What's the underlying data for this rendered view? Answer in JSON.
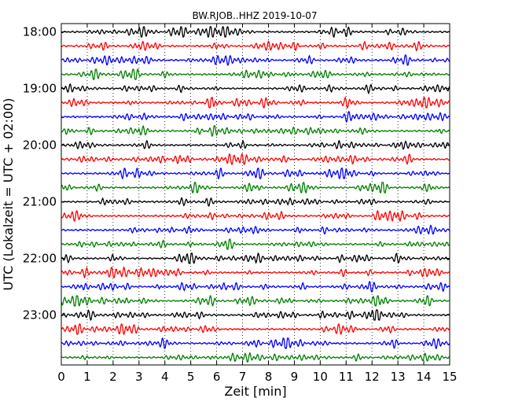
{
  "chart_data": {
    "type": "line",
    "title": "BW.RJOB..HHZ 2019-10-07",
    "xlabel": "Zeit  [min]",
    "ylabel": "UTC (Lokalzeit = UTC + 02:00)",
    "xlim": [
      0,
      15
    ],
    "x_ticks": [
      "0",
      "1",
      "2",
      "3",
      "4",
      "5",
      "6",
      "7",
      "8",
      "9",
      "10",
      "11",
      "12",
      "13",
      "14",
      "15"
    ],
    "y_ticks": [
      "18:00",
      "19:00",
      "20:00",
      "21:00",
      "22:00",
      "23:00"
    ],
    "grid": "vertical dotted",
    "trace_interval_min": 15,
    "trace_colors": [
      "#000000",
      "#ff0000",
      "#0000ff",
      "#008000"
    ],
    "traces": [
      {
        "start": "18:00",
        "color": "#000000"
      },
      {
        "start": "18:15",
        "color": "#ff0000"
      },
      {
        "start": "18:30",
        "color": "#0000ff"
      },
      {
        "start": "18:45",
        "color": "#008000"
      },
      {
        "start": "19:00",
        "color": "#000000"
      },
      {
        "start": "19:15",
        "color": "#ff0000"
      },
      {
        "start": "19:30",
        "color": "#0000ff"
      },
      {
        "start": "19:45",
        "color": "#008000"
      },
      {
        "start": "20:00",
        "color": "#000000"
      },
      {
        "start": "20:15",
        "color": "#ff0000"
      },
      {
        "start": "20:30",
        "color": "#0000ff"
      },
      {
        "start": "20:45",
        "color": "#008000"
      },
      {
        "start": "21:00",
        "color": "#000000"
      },
      {
        "start": "21:15",
        "color": "#ff0000"
      },
      {
        "start": "21:30",
        "color": "#0000ff"
      },
      {
        "start": "21:45",
        "color": "#008000"
      },
      {
        "start": "22:00",
        "color": "#000000"
      },
      {
        "start": "22:15",
        "color": "#ff0000"
      },
      {
        "start": "22:30",
        "color": "#0000ff"
      },
      {
        "start": "22:45",
        "color": "#008000"
      },
      {
        "start": "23:00",
        "color": "#000000"
      },
      {
        "start": "23:15",
        "color": "#ff0000"
      },
      {
        "start": "23:30",
        "color": "#0000ff"
      },
      {
        "start": "23:45",
        "color": "#008000"
      }
    ]
  }
}
